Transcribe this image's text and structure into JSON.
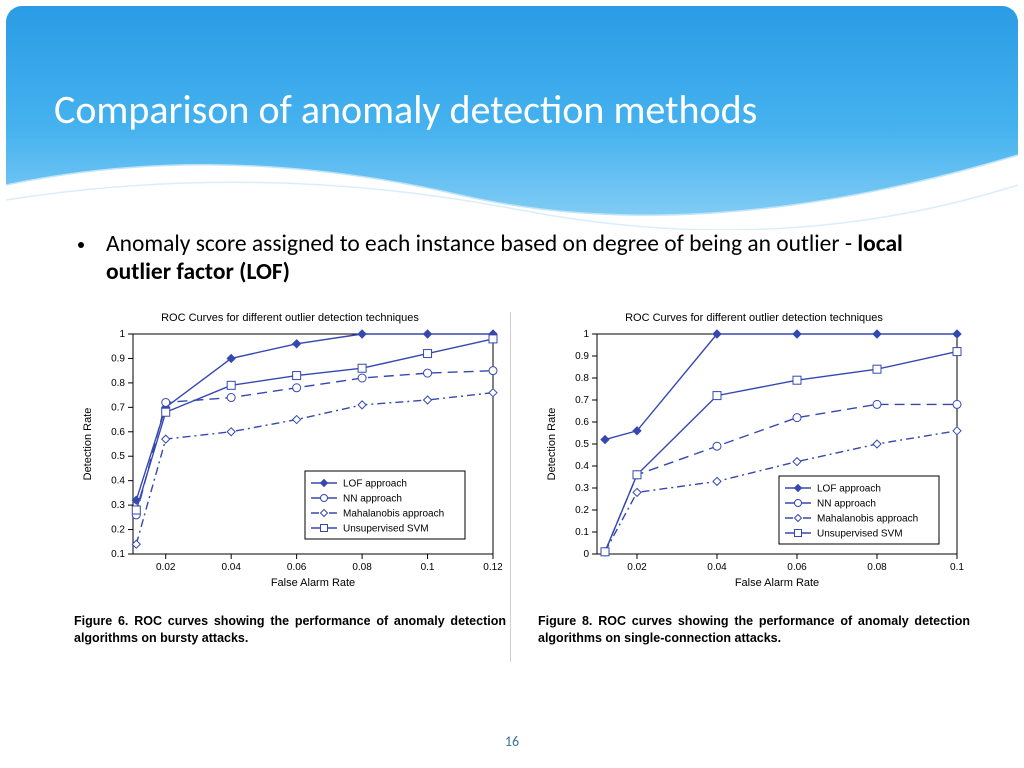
{
  "title": "Comparison of anomaly detection methods",
  "bullet_text_1": "Anomaly score assigned to each instance based on degree of being an outlier -  ",
  "bullet_text_bold": "local outlier factor (LOF)",
  "page_number": "16",
  "header_gradient": {
    "c1": "#2a9ce5",
    "c2": "#46b2ef",
    "c3": "#8ad0f5",
    "c4": "#ffffff"
  },
  "legend": {
    "items": [
      {
        "label": "LOF approach",
        "marker": "filled-diamond",
        "dash": "solid"
      },
      {
        "label": "NN approach",
        "marker": "open-circle",
        "dash": "long-dash"
      },
      {
        "label": "Mahalanobis approach",
        "marker": "open-diamond",
        "dash": "dash-dot"
      },
      {
        "label": "Unsupervised SVM",
        "marker": "open-square",
        "dash": "solid"
      }
    ],
    "color": "#3648b0"
  },
  "charts": [
    {
      "chart_title": "ROC Curves for different outlier detection techniques",
      "xlabel": "False Alarm Rate",
      "ylabel": "Detection Rate",
      "xlim": [
        0.01,
        0.12
      ],
      "xticks": [
        0.02,
        0.04,
        0.06,
        0.08,
        0.1,
        0.12
      ],
      "ylim": [
        0.1,
        1.0
      ],
      "yticks": [
        0.1,
        0.2,
        0.3,
        0.4,
        0.5,
        0.6,
        0.7,
        0.8,
        0.9,
        1.0
      ],
      "series": [
        {
          "name": "LOF",
          "x": [
            0.011,
            0.02,
            0.04,
            0.06,
            0.08,
            0.1,
            0.12
          ],
          "y": [
            0.32,
            0.7,
            0.9,
            0.96,
            1.0,
            1.0,
            1.0
          ]
        },
        {
          "name": "NN",
          "x": [
            0.011,
            0.02,
            0.04,
            0.06,
            0.08,
            0.1,
            0.12
          ],
          "y": [
            0.26,
            0.72,
            0.74,
            0.78,
            0.82,
            0.84,
            0.85
          ]
        },
        {
          "name": "Maha",
          "x": [
            0.011,
            0.02,
            0.04,
            0.06,
            0.08,
            0.1,
            0.12
          ],
          "y": [
            0.14,
            0.57,
            0.6,
            0.65,
            0.71,
            0.73,
            0.76
          ]
        },
        {
          "name": "USVM",
          "x": [
            0.011,
            0.02,
            0.04,
            0.06,
            0.08,
            0.1,
            0.12
          ],
          "y": [
            0.28,
            0.68,
            0.79,
            0.83,
            0.86,
            0.92,
            0.98
          ]
        }
      ],
      "caption": "Figure 6. ROC curves showing the performance of anomaly detection algorithms on bursty attacks."
    },
    {
      "chart_title": "ROC Curves for different outlier detection techniques",
      "xlabel": "False Alarm Rate",
      "ylabel": "Detection Rate",
      "xlim": [
        0.01,
        0.1
      ],
      "xticks": [
        0.02,
        0.04,
        0.06,
        0.08,
        0.1
      ],
      "ylim": [
        0.0,
        1.0
      ],
      "yticks": [
        0.0,
        0.1,
        0.2,
        0.3,
        0.4,
        0.5,
        0.6,
        0.7,
        0.8,
        0.9,
        1.0
      ],
      "series": [
        {
          "name": "LOF",
          "x": [
            0.012,
            0.02,
            0.04,
            0.06,
            0.08,
            0.1
          ],
          "y": [
            0.52,
            0.56,
            1.0,
            1.0,
            1.0,
            1.0
          ]
        },
        {
          "name": "NN",
          "x": [
            0.012,
            0.02,
            0.04,
            0.06,
            0.08,
            0.1
          ],
          "y": [
            0.01,
            0.36,
            0.49,
            0.62,
            0.68,
            0.68
          ]
        },
        {
          "name": "Maha",
          "x": [
            0.012,
            0.02,
            0.04,
            0.06,
            0.08,
            0.1
          ],
          "y": [
            0.01,
            0.28,
            0.33,
            0.42,
            0.5,
            0.56
          ]
        },
        {
          "name": "USVM",
          "x": [
            0.012,
            0.02,
            0.04,
            0.06,
            0.08,
            0.1
          ],
          "y": [
            0.01,
            0.36,
            0.72,
            0.79,
            0.84,
            0.92
          ]
        }
      ],
      "caption": "Figure 8. ROC curves showing the performance of anomaly detection algorithms on single-connection attacks."
    }
  ],
  "style": {
    "line_color": "#3648b0",
    "marker_size": 4,
    "line_width": 1.4,
    "axis_color": "#000000",
    "tick_font_size": 10,
    "background": "#ffffff"
  }
}
